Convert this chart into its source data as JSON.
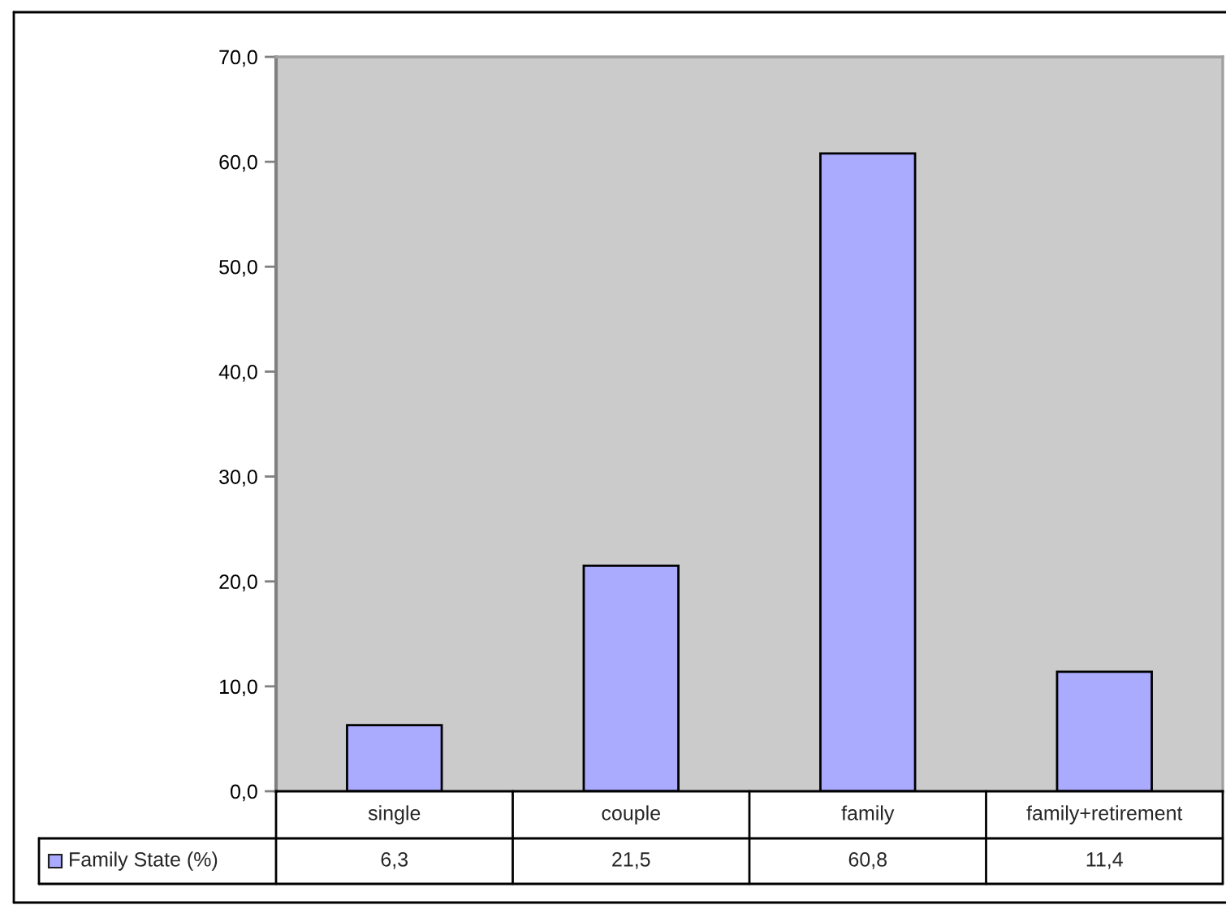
{
  "chart_data": {
    "type": "bar",
    "categories": [
      "single",
      "couple",
      "family",
      "family+retirement"
    ],
    "series": [
      {
        "name": "Family State (%)",
        "color": "#aaaaff",
        "values": [
          6.3,
          21.5,
          60.8,
          11.4
        ],
        "value_labels": [
          "6,3",
          "21,5",
          "60,8",
          "11,4"
        ]
      }
    ],
    "ylim": [
      0,
      70
    ],
    "yticks": [
      {
        "value": 0,
        "label": "0,0"
      },
      {
        "value": 10,
        "label": "10,0"
      },
      {
        "value": 20,
        "label": "20,0"
      },
      {
        "value": 30,
        "label": "30,0"
      },
      {
        "value": 40,
        "label": "40,0"
      },
      {
        "value": 50,
        "label": "50,0"
      },
      {
        "value": 60,
        "label": "60,0"
      },
      {
        "value": 70,
        "label": "70,0"
      }
    ],
    "legend": "bottom"
  }
}
